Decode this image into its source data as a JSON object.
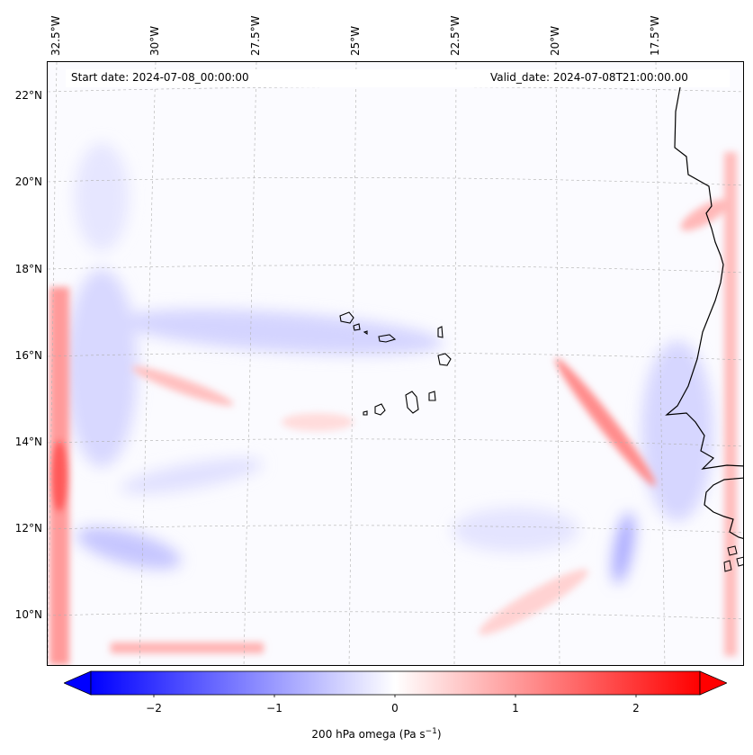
{
  "header": {
    "start_date": "Start date: 2024-07-08_00:00:00",
    "valid_date": "Valid_date: 2024-07-08T21:00:00.00"
  },
  "longitude_labels": [
    "32.5°W",
    "30°W",
    "27.5°W",
    "25°W",
    "22.5°W",
    "20°W",
    "17.5°W"
  ],
  "latitude_labels": [
    "22°N",
    "20°N",
    "18°N",
    "16°N",
    "14°N",
    "12°N",
    "10°N"
  ],
  "colorbar": {
    "label_text": "200 hPa omega (Pa s",
    "label_sup": "−1",
    "label_close": ")",
    "ticks": [
      "−2",
      "−1",
      "0",
      "1",
      "2"
    ],
    "min": -2.6,
    "max": 2.6,
    "colormap": "bwr",
    "extend": "both"
  },
  "colors": {
    "negative": "#0000ff",
    "zero": "#ffffff",
    "positive": "#ff0000",
    "coastline": "#000000",
    "gridline": "#b0b0b0"
  }
}
